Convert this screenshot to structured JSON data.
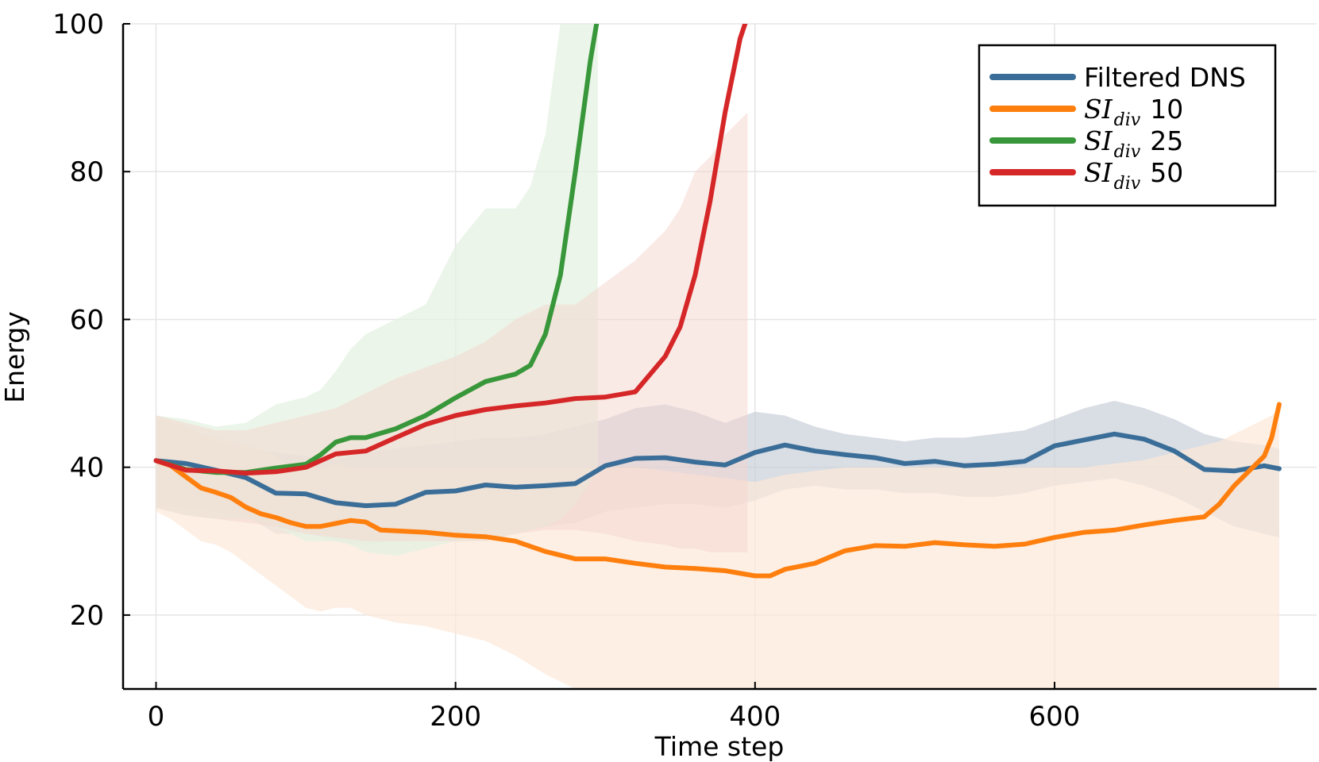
{
  "chart_data": {
    "type": "line",
    "title": "",
    "xlabel": "Time step",
    "ylabel": "Energy",
    "xlim": [
      -22,
      775
    ],
    "ylim": [
      10,
      100
    ],
    "xticks": [
      0,
      200,
      400,
      600
    ],
    "xtick_labels": [
      "0",
      "200",
      "400",
      "600"
    ],
    "yticks": [
      20,
      40,
      60,
      80,
      100
    ],
    "ytick_labels": [
      "20",
      "40",
      "60",
      "80",
      "100"
    ],
    "grid": true,
    "legend_position": "top-right",
    "series": [
      {
        "name": "Filtered DNS",
        "label_text": "Filtered DNS",
        "color": "#1f77b4",
        "line_color": "#3a6e98",
        "band_color": "#c9cfd8",
        "x": [
          0,
          20,
          40,
          60,
          80,
          100,
          120,
          140,
          160,
          180,
          200,
          220,
          240,
          260,
          280,
          300,
          320,
          340,
          360,
          380,
          400,
          420,
          440,
          460,
          480,
          500,
          520,
          540,
          560,
          580,
          600,
          620,
          640,
          660,
          680,
          700,
          720,
          740,
          750
        ],
        "y": [
          40.9,
          40.5,
          39.6,
          38.6,
          36.5,
          36.4,
          35.2,
          34.8,
          35.0,
          36.6,
          36.8,
          37.6,
          37.3,
          37.5,
          37.8,
          40.2,
          41.2,
          41.3,
          40.7,
          40.3,
          42.0,
          43.0,
          42.2,
          41.7,
          41.3,
          40.5,
          40.8,
          40.2,
          40.4,
          40.8,
          42.9,
          43.7,
          44.5,
          43.8,
          42.2,
          39.7,
          39.5,
          40.2,
          39.8
        ],
        "band_upper": [
          46.5,
          45.5,
          43.5,
          42.5,
          42.0,
          41.5,
          41.0,
          42.0,
          42.5,
          43.0,
          43.5,
          44.0,
          44.0,
          44.5,
          45.5,
          46.5,
          48.0,
          48.5,
          47.5,
          46.0,
          47.5,
          47.0,
          45.5,
          44.5,
          44.0,
          43.5,
          44.0,
          44.0,
          44.5,
          45.0,
          46.5,
          48.0,
          49.0,
          48.0,
          46.5,
          44.5,
          43.5,
          43.0,
          42.5
        ],
        "band_lower": [
          35.0,
          34.5,
          34.0,
          33.5,
          31.0,
          31.0,
          30.0,
          29.5,
          30.0,
          30.5,
          31.0,
          31.5,
          31.5,
          32.0,
          32.5,
          34.0,
          34.5,
          35.0,
          35.0,
          34.5,
          35.5,
          37.0,
          37.5,
          37.0,
          37.0,
          36.5,
          36.5,
          36.0,
          36.0,
          36.5,
          37.5,
          38.0,
          38.5,
          37.5,
          36.0,
          34.0,
          32.0,
          31.0,
          30.5
        ]
      },
      {
        "name": "SI_div 10",
        "label_math": "SI",
        "label_sub": "div",
        "label_number": "10",
        "color": "#ff7f0e",
        "line_color": "#ff7f0e",
        "band_color": "#fce8d8",
        "x": [
          0,
          10,
          20,
          30,
          40,
          50,
          60,
          70,
          80,
          90,
          100,
          110,
          120,
          130,
          140,
          150,
          160,
          180,
          200,
          220,
          240,
          260,
          280,
          300,
          320,
          340,
          360,
          380,
          400,
          410,
          420,
          440,
          460,
          480,
          500,
          520,
          540,
          560,
          580,
          600,
          620,
          640,
          660,
          680,
          700,
          710,
          720,
          730,
          740,
          745,
          750
        ],
        "y": [
          40.9,
          40.2,
          38.7,
          37.2,
          36.6,
          35.9,
          34.6,
          33.7,
          33.2,
          32.5,
          32.0,
          32.0,
          32.4,
          32.8,
          32.6,
          31.5,
          31.4,
          31.2,
          30.8,
          30.6,
          30.0,
          28.6,
          27.6,
          27.6,
          27.0,
          26.5,
          26.3,
          26.0,
          25.3,
          25.3,
          26.2,
          27.0,
          28.7,
          29.4,
          29.3,
          29.8,
          29.5,
          29.3,
          29.6,
          30.5,
          31.2,
          31.5,
          32.2,
          32.8,
          33.3,
          35.0,
          37.5,
          39.5,
          41.5,
          44.0,
          48.5
        ],
        "band_upper": [
          47.0,
          46.5,
          45.5,
          44.5,
          44.0,
          43.5,
          43.0,
          42.5,
          41.5,
          40.0,
          40.0,
          40.0,
          40.5,
          40.0,
          40.0,
          40.0,
          40.0,
          40.0,
          40.0,
          40.0,
          40.0,
          40.0,
          40.0,
          40.0,
          40.0,
          39.5,
          39.0,
          38.5,
          38.0,
          38.5,
          39.0,
          39.5,
          40.0,
          40.0,
          40.0,
          40.0,
          40.0,
          40.0,
          40.0,
          40.0,
          40.0,
          40.5,
          41.0,
          42.0,
          43.0,
          43.5,
          44.5,
          45.5,
          46.5,
          47.0,
          48.0
        ],
        "band_lower": [
          34.0,
          33.0,
          31.5,
          30.0,
          29.5,
          28.5,
          27.0,
          25.5,
          24.0,
          22.5,
          21.0,
          20.5,
          21.0,
          21.0,
          20.0,
          19.5,
          19.0,
          18.5,
          17.5,
          16.5,
          14.5,
          12.0,
          10.0,
          10.0,
          10.0,
          10.0,
          10.0,
          10.0,
          10.0,
          10.0,
          10.0,
          10.0,
          10.0,
          10.0,
          10.0,
          10.0,
          10.0,
          10.0,
          10.0,
          10.0,
          10.0,
          10.0,
          10.0,
          10.0,
          10.0,
          10.0,
          10.0,
          10.0,
          10.0,
          10.0,
          10.0
        ]
      },
      {
        "name": "SI_div 25",
        "label_math": "SI",
        "label_sub": "div",
        "label_number": "25",
        "color": "#2ca02c",
        "line_color": "#38973a",
        "band_color": "#e4f1e2",
        "x": [
          0,
          20,
          40,
          60,
          80,
          100,
          110,
          120,
          130,
          140,
          160,
          180,
          200,
          220,
          240,
          250,
          260,
          270,
          280,
          290,
          295
        ],
        "y": [
          40.9,
          39.7,
          39.3,
          39.3,
          39.9,
          40.4,
          41.7,
          43.4,
          44.0,
          44.0,
          45.2,
          47.0,
          49.4,
          51.6,
          52.6,
          53.8,
          58.0,
          66.0,
          80.0,
          95.0,
          101.0
        ],
        "band_upper": [
          47.0,
          46.5,
          45.5,
          46.0,
          48.5,
          49.5,
          50.5,
          53.0,
          56.0,
          58.0,
          60.0,
          62.0,
          70.0,
          75.0,
          75.0,
          78.0,
          85.0,
          100.0,
          100.0,
          100.0,
          100.0
        ],
        "band_lower": [
          34.5,
          33.5,
          33.0,
          33.0,
          32.0,
          30.0,
          30.0,
          30.0,
          29.5,
          28.5,
          28.0,
          29.0,
          30.0,
          30.0,
          31.0,
          31.5,
          32.0,
          33.0,
          35.0,
          38.0,
          40.0
        ]
      },
      {
        "name": "SI_div 50",
        "label_math": "SI",
        "label_sub": "div",
        "label_number": "50",
        "color": "#d62728",
        "line_color": "#d62728",
        "band_color": "#f6d6cd",
        "x": [
          0,
          20,
          40,
          60,
          80,
          100,
          120,
          140,
          160,
          180,
          200,
          220,
          240,
          260,
          280,
          300,
          320,
          340,
          350,
          360,
          370,
          380,
          390,
          395
        ],
        "y": [
          40.9,
          39.6,
          39.5,
          39.2,
          39.4,
          40.0,
          41.8,
          42.2,
          44.0,
          45.8,
          47.0,
          47.8,
          48.3,
          48.7,
          49.3,
          49.5,
          50.2,
          55.0,
          59.0,
          66.0,
          76.0,
          88.0,
          98.0,
          101.0
        ],
        "band_upper": [
          47.0,
          46.0,
          45.0,
          45.0,
          46.0,
          47.0,
          48.0,
          50.0,
          52.0,
          53.5,
          55.0,
          57.0,
          60.0,
          62.0,
          62.0,
          65.0,
          68.0,
          72.0,
          75.0,
          80.0,
          82.0,
          85.0,
          87.0,
          88.0
        ],
        "band_lower": [
          34.5,
          33.5,
          33.0,
          32.5,
          32.0,
          31.0,
          30.5,
          30.0,
          30.0,
          30.0,
          30.0,
          30.0,
          31.0,
          31.5,
          31.5,
          31.0,
          30.0,
          29.5,
          29.0,
          29.0,
          28.5,
          28.5,
          28.5,
          28.5
        ]
      }
    ]
  }
}
